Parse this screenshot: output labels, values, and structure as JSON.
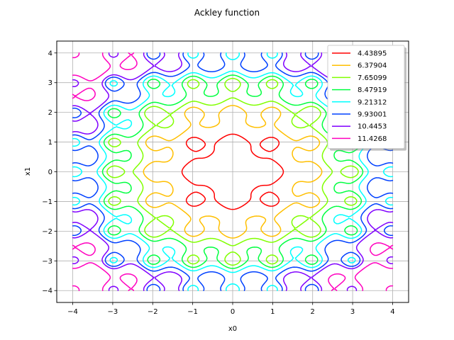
{
  "chart_data": {
    "type": "contour",
    "title": "Ackley function",
    "xlabel": "x0",
    "ylabel": "x1",
    "xlim": [
      -4.4,
      4.4
    ],
    "ylim": [
      -4.4,
      4.4
    ],
    "xticks": [
      -4,
      -3,
      -2,
      -1,
      0,
      1,
      2,
      3,
      4
    ],
    "yticks": [
      -4,
      -3,
      -2,
      -1,
      0,
      1,
      2,
      3,
      4
    ],
    "grid": true,
    "legend_position": "top-right",
    "function": "ackley",
    "levels": [
      {
        "label": "4.43895",
        "value": 4.43895,
        "color": "#ff0000"
      },
      {
        "label": "6.37904",
        "value": 6.37904,
        "color": "#ffbf00"
      },
      {
        "label": "7.65099",
        "value": 7.65099,
        "color": "#80ff00"
      },
      {
        "label": "8.47919",
        "value": 8.47919,
        "color": "#00ff40"
      },
      {
        "label": "9.21312",
        "value": 9.21312,
        "color": "#00ffff"
      },
      {
        "label": "9.93001",
        "value": 9.93001,
        "color": "#0040ff"
      },
      {
        "label": "10.4453",
        "value": 10.4453,
        "color": "#8000ff"
      },
      {
        "label": "11.4268",
        "value": 11.4268,
        "color": "#ff00bf"
      }
    ]
  }
}
